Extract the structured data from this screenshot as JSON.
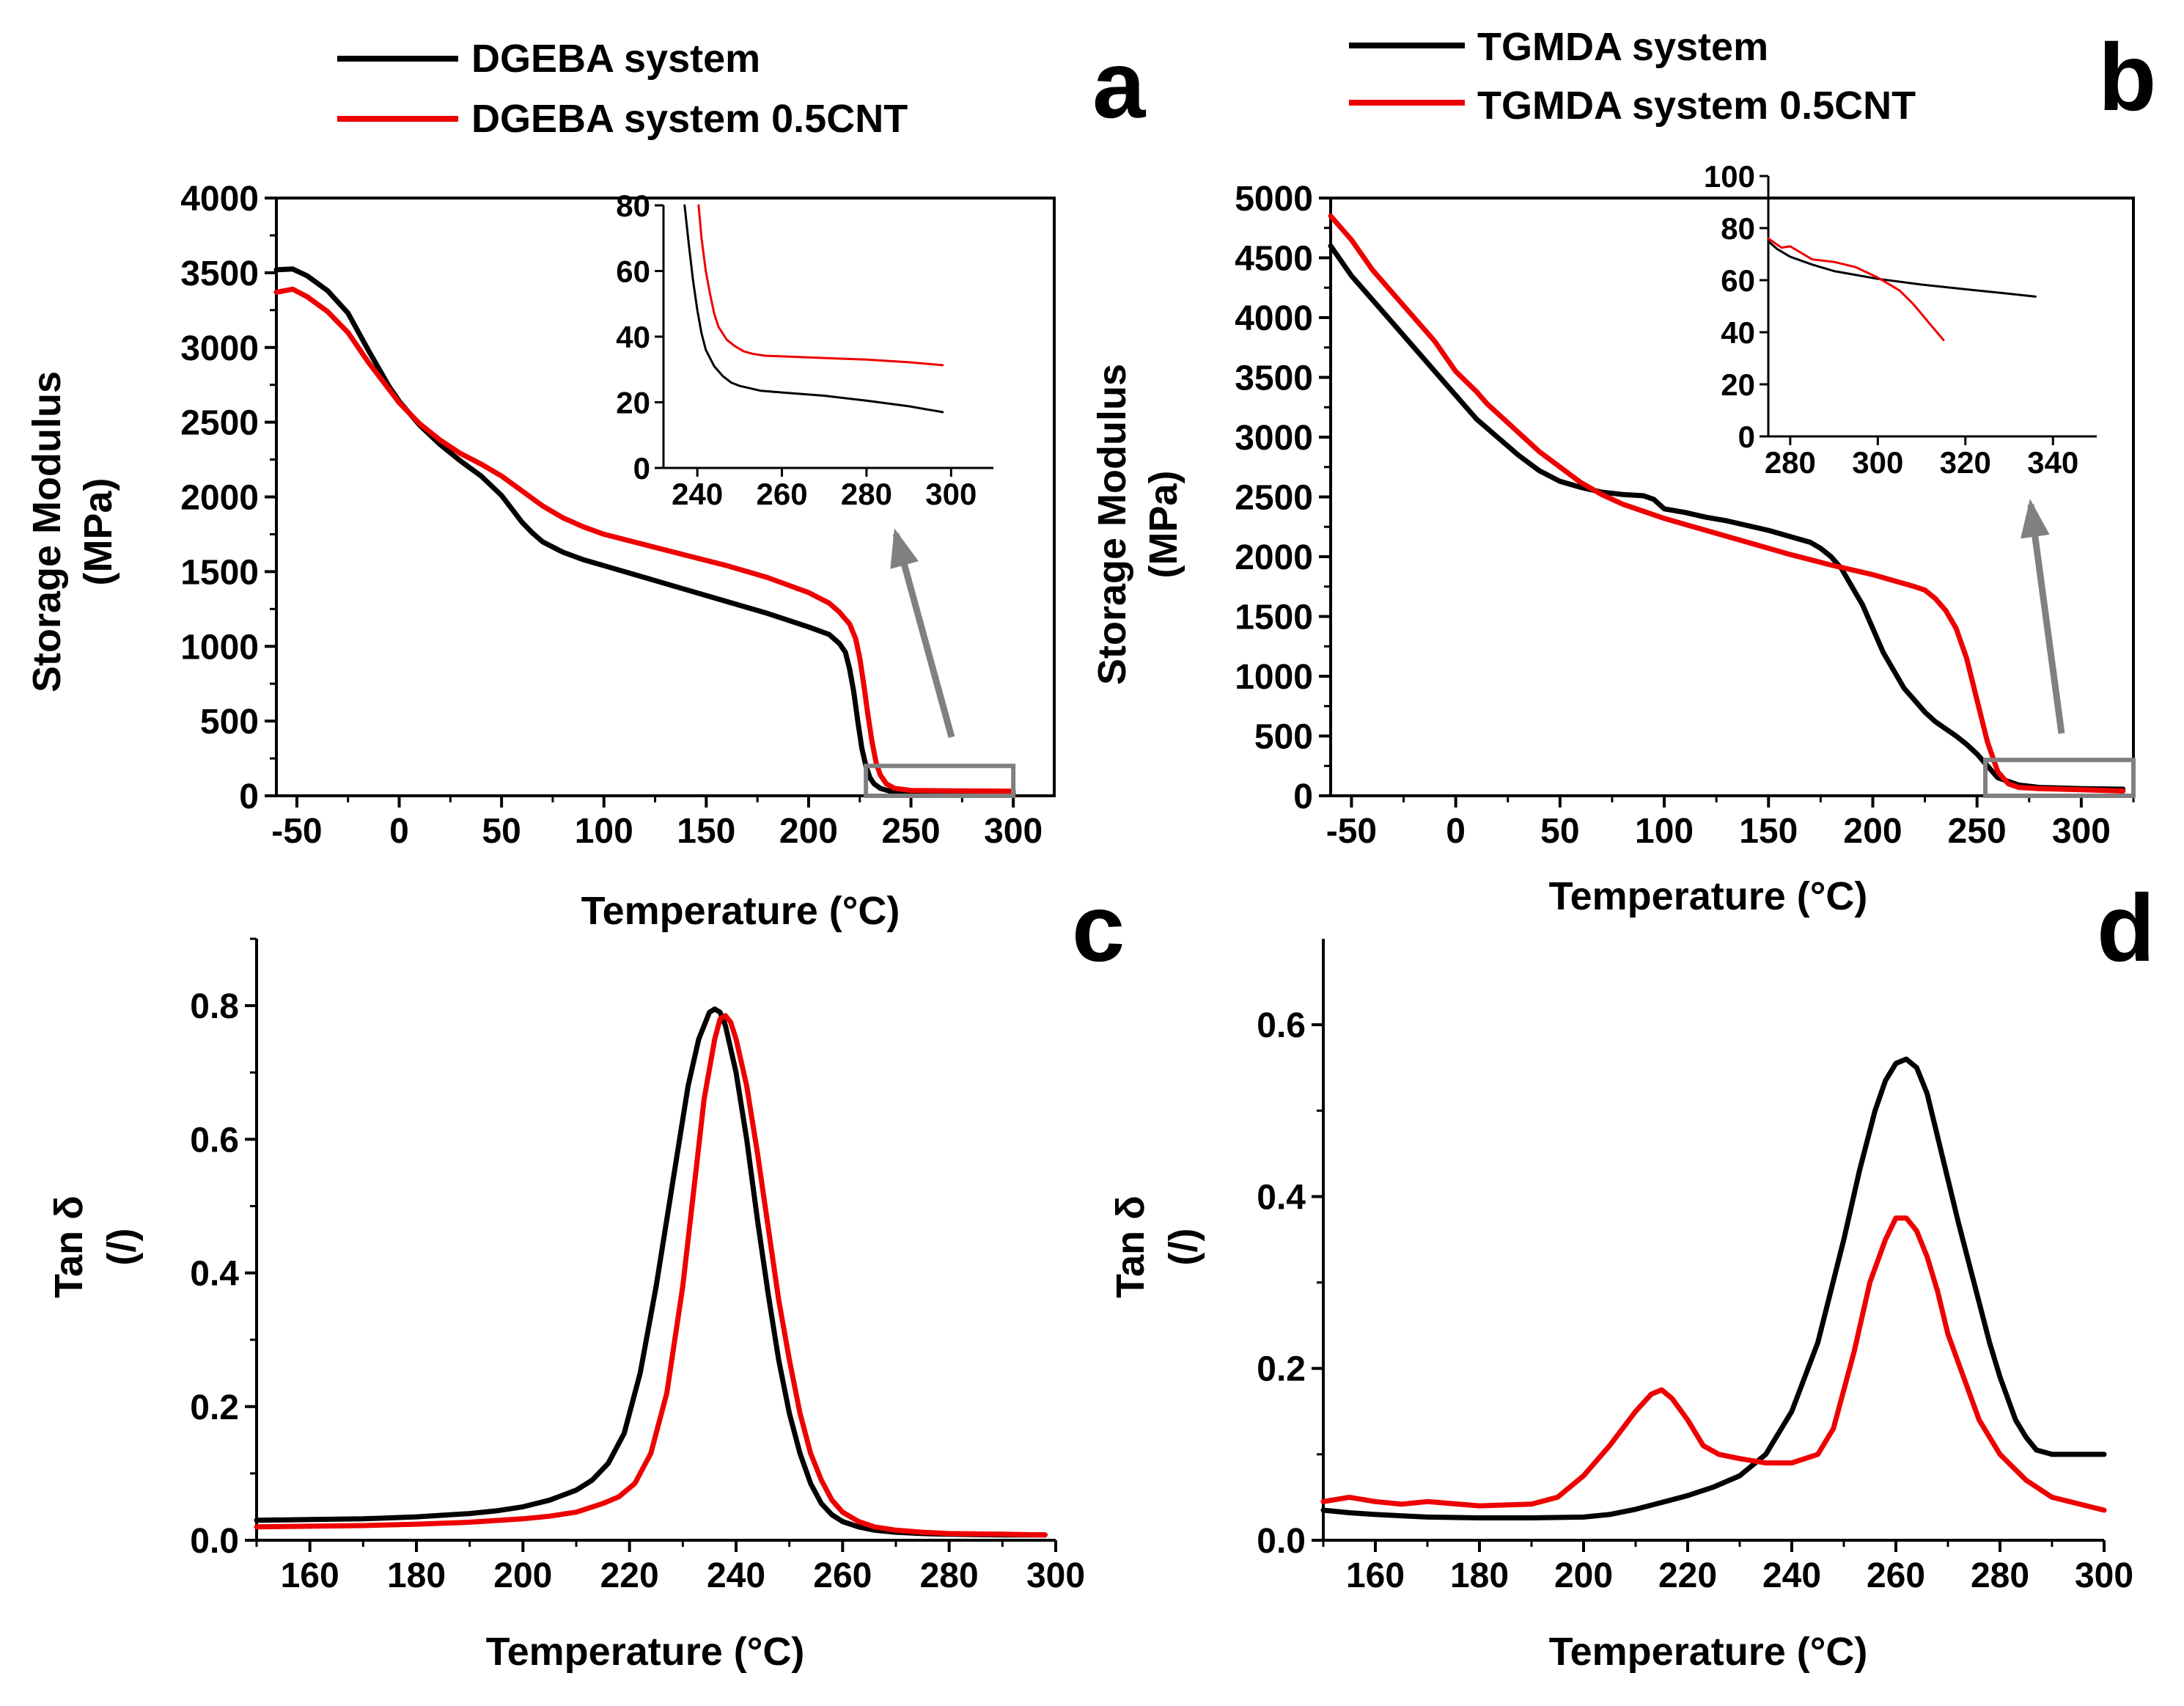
{
  "colors": {
    "black": "#000000",
    "red": "#ee0000",
    "gray": "#808080"
  },
  "chart_data": [
    {
      "id": "a",
      "type": "line",
      "panel_label": "a",
      "xlabel": "Temperature (°C)",
      "ylabel": [
        "Storage Modulus",
        "(MPa)"
      ],
      "xlim": [
        -60,
        320
      ],
      "ylim": [
        0,
        4000
      ],
      "xticks": [
        "-50",
        "0",
        "50",
        "100",
        "150",
        "200",
        "250",
        "300"
      ],
      "yticks": [
        "0",
        "500",
        "1000",
        "1500",
        "2000",
        "2500",
        "3000",
        "3500",
        "4000"
      ],
      "series": [
        {
          "name": "DGEBA system",
          "color": "black",
          "x": [
            -60,
            -52,
            -45,
            -35,
            -25,
            -15,
            -5,
            0,
            10,
            20,
            30,
            40,
            50,
            55,
            60,
            65,
            70,
            80,
            90,
            100,
            120,
            140,
            160,
            180,
            200,
            210,
            215,
            218,
            220,
            222,
            224,
            226,
            228,
            230,
            232,
            235,
            240,
            250,
            270,
            300
          ],
          "y": [
            3520,
            3525,
            3480,
            3380,
            3230,
            2980,
            2740,
            2640,
            2480,
            2350,
            2240,
            2140,
            2010,
            1920,
            1830,
            1760,
            1700,
            1630,
            1580,
            1540,
            1460,
            1380,
            1300,
            1220,
            1130,
            1080,
            1020,
            960,
            850,
            700,
            500,
            320,
            200,
            120,
            80,
            50,
            30,
            22,
            18,
            16
          ]
        },
        {
          "name": "DGEBA system 0.5CNT",
          "color": "red",
          "x": [
            -60,
            -52,
            -45,
            -35,
            -25,
            -15,
            -5,
            0,
            10,
            20,
            30,
            40,
            50,
            60,
            70,
            80,
            90,
            100,
            120,
            140,
            160,
            180,
            200,
            210,
            215,
            220,
            223,
            225,
            227,
            229,
            231,
            233,
            235,
            238,
            242,
            250,
            270,
            300
          ],
          "y": [
            3370,
            3390,
            3340,
            3240,
            3100,
            2900,
            2720,
            2630,
            2490,
            2380,
            2290,
            2220,
            2140,
            2040,
            1940,
            1860,
            1800,
            1750,
            1680,
            1610,
            1540,
            1460,
            1360,
            1290,
            1230,
            1150,
            1050,
            920,
            740,
            540,
            360,
            220,
            140,
            80,
            50,
            36,
            33,
            31
          ]
        }
      ],
      "annotation": {
        "box_x": [
          228,
          300
        ],
        "box_y": [
          0,
          200
        ]
      },
      "inset": {
        "xlim": [
          232,
          310
        ],
        "ylim": [
          0,
          80
        ],
        "xticks": [
          "240",
          "260",
          "280",
          "300"
        ],
        "yticks": [
          "0",
          "20",
          "40",
          "60",
          "80"
        ],
        "series": [
          {
            "color": "black",
            "x": [
              237,
              238,
              239,
              240,
              241,
              242,
              244,
              246,
              248,
              250,
              255,
              260,
              270,
              280,
              290,
              298
            ],
            "y": [
              80,
              68,
              57,
              48,
              41,
              36,
              31,
              28,
              26,
              25,
              23.5,
              23,
              22,
              20.5,
              18.8,
              17
            ]
          },
          {
            "color": "red",
            "x": [
              240.3,
              241,
              242,
              243,
              244,
              245,
              247,
              249,
              251,
              253,
              256,
              260,
              270,
              280,
              290,
              298
            ],
            "y": [
              80,
              70,
              60,
              53,
              47,
              43,
              39,
              37,
              35.5,
              34.8,
              34.2,
              34,
              33.5,
              33,
              32.2,
              31.3
            ]
          }
        ]
      }
    },
    {
      "id": "b",
      "type": "line",
      "panel_label": "b",
      "xlabel": "Temperature (°C)",
      "ylabel": [
        "Storage Modulus",
        "(MPa)"
      ],
      "xlim": [
        -60,
        325
      ],
      "ylim": [
        0,
        5000
      ],
      "xticks": [
        "-50",
        "0",
        "50",
        "100",
        "150",
        "200",
        "250",
        "300"
      ],
      "yticks": [
        "0",
        "500",
        "1000",
        "1500",
        "2000",
        "2500",
        "3000",
        "3500",
        "4000",
        "4500",
        "5000"
      ],
      "series": [
        {
          "name": "TGMDA system",
          "color": "black",
          "x": [
            -60,
            -50,
            -40,
            -30,
            -20,
            -10,
            0,
            10,
            20,
            30,
            40,
            50,
            60,
            70,
            80,
            90,
            95,
            100,
            110,
            120,
            130,
            140,
            150,
            160,
            170,
            175,
            180,
            185,
            190,
            195,
            200,
            205,
            210,
            215,
            220,
            225,
            230,
            235,
            240,
            245,
            250,
            255,
            260,
            270,
            280,
            300,
            320
          ],
          "y": [
            4600,
            4350,
            4150,
            3950,
            3750,
            3550,
            3350,
            3150,
            3000,
            2850,
            2720,
            2630,
            2580,
            2540,
            2520,
            2510,
            2480,
            2400,
            2370,
            2330,
            2300,
            2260,
            2220,
            2170,
            2120,
            2070,
            2000,
            1900,
            1750,
            1600,
            1400,
            1200,
            1050,
            900,
            800,
            700,
            620,
            560,
            500,
            430,
            350,
            250,
            150,
            90,
            70,
            60,
            55
          ]
        },
        {
          "name": "TGMDA system 0.5CNT",
          "color": "red",
          "x": [
            -60,
            -50,
            -40,
            -30,
            -20,
            -10,
            0,
            10,
            15,
            20,
            30,
            40,
            50,
            60,
            70,
            80,
            90,
            100,
            110,
            120,
            140,
            160,
            180,
            200,
            210,
            220,
            225,
            230,
            235,
            240,
            245,
            250,
            255,
            260,
            265,
            270,
            280,
            300,
            320
          ],
          "y": [
            4850,
            4650,
            4400,
            4200,
            4000,
            3800,
            3550,
            3380,
            3280,
            3200,
            3040,
            2880,
            2750,
            2620,
            2520,
            2440,
            2380,
            2320,
            2270,
            2220,
            2120,
            2020,
            1930,
            1850,
            1800,
            1750,
            1720,
            1650,
            1550,
            1400,
            1150,
            800,
            450,
            200,
            100,
            70,
            60,
            50,
            40
          ]
        }
      ],
      "annotation": {
        "box_x": [
          254,
          325
        ],
        "box_y": [
          0,
          300
        ]
      },
      "inset": {
        "xlim": [
          275,
          350
        ],
        "ylim": [
          0,
          100
        ],
        "xticks": [
          "280",
          "300",
          "320",
          "340"
        ],
        "yticks": [
          "0",
          "20",
          "40",
          "60",
          "80",
          "100"
        ],
        "series": [
          {
            "color": "black",
            "x": [
              275,
              277,
              280,
              285,
              290,
              295,
              300,
              310,
              320,
              330,
              336
            ],
            "y": [
              75,
              72,
              69,
              66,
              63.5,
              62,
              60.5,
              58.3,
              56.5,
              54.8,
              53.7
            ]
          },
          {
            "color": "red",
            "x": [
              275,
              278,
              280,
              283,
              285,
              290,
              295,
              300,
              303,
              305,
              308,
              310,
              312,
              314,
              315
            ],
            "y": [
              76,
              72.5,
              73,
              70,
              68,
              67,
              65,
              61,
              58,
              56,
              51,
              47,
              43,
              39,
              37
            ]
          }
        ]
      }
    },
    {
      "id": "c",
      "type": "line",
      "panel_label": "c",
      "xlabel": "Temperature (°C)",
      "ylabel": [
        "Tan δ",
        "(/)"
      ],
      "xlim": [
        150,
        300
      ],
      "ylim": [
        0,
        0.9
      ],
      "xticks": [
        "160",
        "180",
        "200",
        "220",
        "240",
        "260",
        "280",
        "300"
      ],
      "yticks": [
        "0.0",
        "0.2",
        "0.4",
        "0.6",
        "0.8"
      ],
      "series": [
        {
          "name": "DGEBA system",
          "color": "black",
          "x": [
            150,
            160,
            170,
            180,
            190,
            195,
            200,
            205,
            210,
            213,
            216,
            219,
            222,
            225,
            228,
            231,
            233,
            235,
            236,
            237,
            238,
            240,
            242,
            244,
            246,
            248,
            250,
            252,
            254,
            256,
            258,
            260,
            263,
            266,
            270,
            275,
            280,
            290,
            298
          ],
          "y": [
            0.03,
            0.031,
            0.032,
            0.035,
            0.04,
            0.044,
            0.05,
            0.06,
            0.075,
            0.09,
            0.115,
            0.16,
            0.25,
            0.38,
            0.53,
            0.68,
            0.75,
            0.79,
            0.795,
            0.79,
            0.77,
            0.7,
            0.6,
            0.48,
            0.37,
            0.27,
            0.19,
            0.13,
            0.085,
            0.055,
            0.038,
            0.028,
            0.02,
            0.015,
            0.012,
            0.01,
            0.009,
            0.008,
            0.008
          ]
        },
        {
          "name": "DGEBA system 0.5CNT",
          "color": "red",
          "x": [
            150,
            160,
            170,
            180,
            190,
            200,
            205,
            210,
            215,
            218,
            221,
            224,
            227,
            230,
            232,
            234,
            236,
            237,
            238,
            239,
            240,
            242,
            244,
            246,
            248,
            250,
            252,
            254,
            256,
            258,
            260,
            263,
            266,
            270,
            275,
            280,
            290,
            298
          ],
          "y": [
            0.02,
            0.021,
            0.022,
            0.024,
            0.027,
            0.032,
            0.036,
            0.042,
            0.055,
            0.065,
            0.085,
            0.13,
            0.22,
            0.38,
            0.52,
            0.66,
            0.75,
            0.78,
            0.785,
            0.775,
            0.75,
            0.68,
            0.58,
            0.47,
            0.36,
            0.27,
            0.19,
            0.13,
            0.09,
            0.06,
            0.042,
            0.028,
            0.02,
            0.015,
            0.012,
            0.01,
            0.009,
            0.008
          ]
        }
      ]
    },
    {
      "id": "d",
      "type": "line",
      "panel_label": "d",
      "xlabel": "Temperature (°C)",
      "ylabel": [
        "Tan δ",
        "(/)"
      ],
      "xlim": [
        150,
        300
      ],
      "ylim": [
        0,
        0.7
      ],
      "xticks": [
        "160",
        "180",
        "200",
        "220",
        "240",
        "260",
        "280",
        "300"
      ],
      "yticks": [
        "0.0",
        "0.2",
        "0.4",
        "0.6"
      ],
      "series": [
        {
          "name": "TGMDA system",
          "color": "black",
          "x": [
            150,
            155,
            160,
            170,
            180,
            190,
            200,
            205,
            210,
            215,
            220,
            225,
            230,
            235,
            240,
            245,
            250,
            253,
            256,
            258,
            260,
            262,
            264,
            266,
            268,
            270,
            272,
            275,
            278,
            280,
            283,
            285,
            287,
            290,
            295,
            300
          ],
          "y": [
            0.035,
            0.032,
            0.03,
            0.027,
            0.026,
            0.026,
            0.027,
            0.03,
            0.036,
            0.044,
            0.052,
            0.062,
            0.075,
            0.1,
            0.15,
            0.23,
            0.35,
            0.43,
            0.5,
            0.535,
            0.555,
            0.56,
            0.55,
            0.52,
            0.47,
            0.42,
            0.37,
            0.3,
            0.23,
            0.19,
            0.14,
            0.12,
            0.105,
            0.1,
            0.1,
            0.1
          ]
        },
        {
          "name": "TGMDA system 0.5CNT",
          "color": "red",
          "x": [
            150,
            155,
            160,
            165,
            170,
            180,
            190,
            195,
            200,
            205,
            210,
            213,
            215,
            217,
            220,
            223,
            226,
            230,
            235,
            240,
            245,
            248,
            252,
            255,
            258,
            260,
            262,
            264,
            266,
            268,
            270,
            273,
            276,
            280,
            285,
            290,
            300
          ],
          "y": [
            0.045,
            0.05,
            0.045,
            0.042,
            0.045,
            0.04,
            0.042,
            0.05,
            0.075,
            0.11,
            0.15,
            0.17,
            0.175,
            0.165,
            0.14,
            0.11,
            0.1,
            0.095,
            0.09,
            0.09,
            0.1,
            0.13,
            0.22,
            0.3,
            0.35,
            0.375,
            0.375,
            0.36,
            0.33,
            0.29,
            0.24,
            0.19,
            0.14,
            0.1,
            0.07,
            0.05,
            0.035
          ]
        }
      ]
    }
  ]
}
